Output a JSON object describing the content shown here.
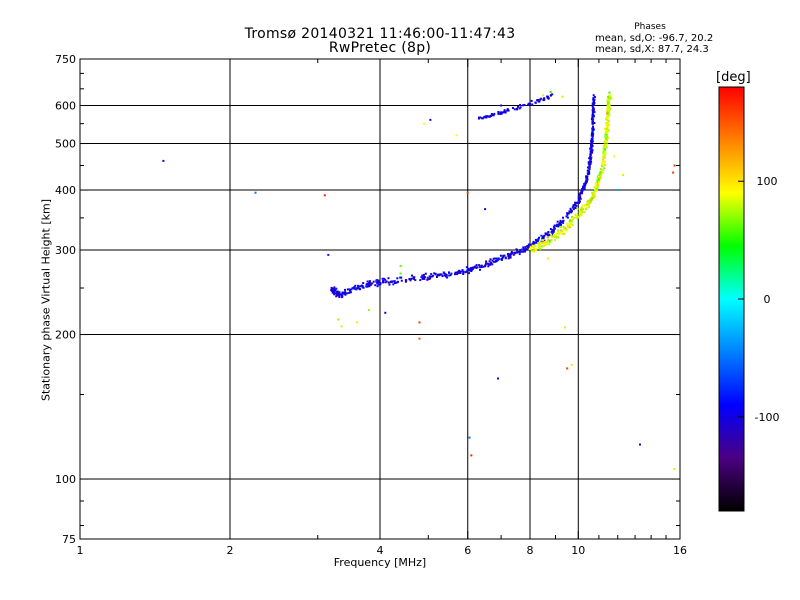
{
  "title": {
    "line1": "Tromsø 20140321 11:46:00-11:47:43",
    "line2": "RwPretec (8p)"
  },
  "phases": {
    "title": "Phases",
    "o_line": "mean, sd,O: -96.7, 20.2",
    "x_line": "mean, sd,X:  87.7, 24.3"
  },
  "colorbar": {
    "label": "[deg]",
    "range": [
      -180,
      180
    ],
    "ticks": [
      {
        "value": 100,
        "label": "100"
      },
      {
        "value": 0,
        "label": "0"
      },
      {
        "value": -100,
        "label": "-100"
      }
    ],
    "colors": [
      "#000000",
      "#4b0082",
      "#0000ff",
      "#0080ff",
      "#00ffff",
      "#00ff00",
      "#ffff00",
      "#ff8000",
      "#ff0000"
    ]
  },
  "chart_data": {
    "type": "scatter",
    "xlabel": "Frequency [MHz]",
    "ylabel": "Stationary phase Virtual Height [km]",
    "xscale": "log",
    "yscale": "log",
    "xlim": [
      1,
      16
    ],
    "ylim": [
      75,
      750
    ],
    "grid": true,
    "xticks": [
      {
        "value": 1,
        "label": "1"
      },
      {
        "value": 2,
        "label": "2"
      },
      {
        "value": 4,
        "label": "4"
      },
      {
        "value": 6,
        "label": "6"
      },
      {
        "value": 8,
        "label": "8"
      },
      {
        "value": 10,
        "label": "10"
      },
      {
        "value": 16,
        "label": "16"
      }
    ],
    "x_minor_ticks": [
      3,
      5,
      7,
      9,
      11,
      12,
      13,
      14,
      15
    ],
    "yticks": [
      {
        "value": 75,
        "label": "75"
      },
      {
        "value": 100,
        "label": "100"
      },
      {
        "value": 200,
        "label": "200"
      },
      {
        "value": 300,
        "label": "300"
      },
      {
        "value": 400,
        "label": "400"
      },
      {
        "value": 500,
        "label": "500"
      },
      {
        "value": 600,
        "label": "600"
      },
      {
        "value": 750,
        "label": "750"
      }
    ],
    "y_minor_ticks": [
      80,
      90,
      150,
      250,
      350,
      450,
      550,
      650,
      700
    ],
    "x_grid": [
      2,
      4,
      6,
      8,
      10
    ],
    "y_grid": [
      100,
      200,
      300,
      400,
      500,
      600
    ],
    "trace_o": [
      [
        3.2,
        250
      ],
      [
        3.3,
        242
      ],
      [
        3.5,
        248
      ],
      [
        3.8,
        255
      ],
      [
        4.0,
        257
      ],
      [
        4.5,
        260
      ],
      [
        5.0,
        264
      ],
      [
        5.5,
        268
      ],
      [
        6.0,
        272
      ],
      [
        6.5,
        280
      ],
      [
        7.0,
        288
      ],
      [
        7.5,
        296
      ],
      [
        8.0,
        305
      ],
      [
        8.5,
        318
      ],
      [
        9.0,
        332
      ],
      [
        9.5,
        352
      ],
      [
        10.0,
        380
      ],
      [
        10.3,
        410
      ],
      [
        10.5,
        440
      ],
      [
        10.6,
        470
      ],
      [
        10.65,
        500
      ],
      [
        10.7,
        540
      ],
      [
        10.72,
        580
      ],
      [
        10.75,
        620
      ]
    ],
    "trace_x": [
      [
        8.0,
        300
      ],
      [
        8.5,
        310
      ],
      [
        9.0,
        320
      ],
      [
        9.5,
        335
      ],
      [
        10.0,
        355
      ],
      [
        10.5,
        375
      ],
      [
        10.8,
        395
      ],
      [
        11.0,
        420
      ],
      [
        11.2,
        450
      ],
      [
        11.3,
        480
      ],
      [
        11.4,
        520
      ],
      [
        11.45,
        560
      ],
      [
        11.5,
        600
      ],
      [
        11.55,
        630
      ]
    ],
    "trace_f": [
      [
        6.3,
        563
      ],
      [
        6.6,
        570
      ],
      [
        7.0,
        580
      ],
      [
        7.5,
        592
      ],
      [
        8.0,
        605
      ],
      [
        8.5,
        620
      ],
      [
        8.9,
        630
      ]
    ],
    "scatter": [
      [
        1.47,
        460,
        -110
      ],
      [
        2.25,
        395,
        -50
      ],
      [
        3.1,
        390,
        170
      ],
      [
        3.15,
        293,
        -80
      ],
      [
        3.3,
        215,
        70
      ],
      [
        3.35,
        208,
        80
      ],
      [
        3.6,
        212,
        100
      ],
      [
        3.8,
        225,
        70
      ],
      [
        4.1,
        222,
        -110
      ],
      [
        4.4,
        278,
        60
      ],
      [
        4.4,
        268,
        60
      ],
      [
        4.8,
        212,
        160
      ],
      [
        4.8,
        196,
        150
      ],
      [
        4.9,
        550,
        90
      ],
      [
        5.05,
        560,
        -110
      ],
      [
        5.7,
        520,
        90
      ],
      [
        6.0,
        395,
        160
      ],
      [
        6.05,
        122,
        -50
      ],
      [
        6.1,
        112,
        170
      ],
      [
        6.5,
        365,
        -110
      ],
      [
        6.9,
        162,
        -100
      ],
      [
        7.0,
        600,
        -110
      ],
      [
        8.5,
        630,
        80
      ],
      [
        8.7,
        288,
        100
      ],
      [
        8.8,
        640,
        50
      ],
      [
        9.3,
        626,
        80
      ],
      [
        9.4,
        207,
        100
      ],
      [
        9.5,
        170,
        160
      ],
      [
        9.7,
        173,
        100
      ],
      [
        12.0,
        400,
        -30
      ],
      [
        13.3,
        118,
        -120
      ],
      [
        15.5,
        435,
        160
      ],
      [
        15.6,
        450,
        160
      ],
      [
        15.6,
        105,
        100
      ],
      [
        12.3,
        430,
        100
      ],
      [
        11.8,
        470,
        90
      ]
    ]
  }
}
